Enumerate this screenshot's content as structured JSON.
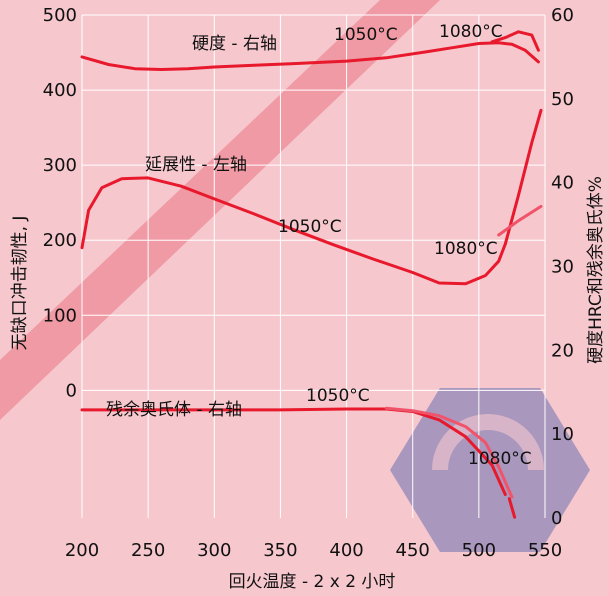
{
  "chart_data": {
    "type": "line",
    "xlabel": "回火温度 - 2 x 2 小时",
    "ylabel_left": "无缺口冲击韧性, J",
    "ylabel_right": "硬度HRC和残余奥氏体%",
    "x_ticks": [
      200,
      250,
      300,
      350,
      400,
      450,
      500,
      550
    ],
    "y_left_ticks": [
      0,
      100,
      200,
      300,
      400,
      500
    ],
    "y_right_ticks": [
      0,
      10,
      20,
      30,
      40,
      50,
      60
    ],
    "xlim": [
      200,
      550
    ],
    "ylim_left": [
      -170,
      500
    ],
    "ylim_right": [
      0,
      60
    ],
    "grid": true,
    "colors": {
      "background": "#f6c8ce",
      "band": "#ef9aa4",
      "curve": "#e8192c",
      "curve_light": "#f0546a",
      "grid": "#ffffff",
      "text": "#111111",
      "watermark": "#4b5ca8"
    },
    "annotations": {
      "hardness": "硬度 - 右轴",
      "toughness": "延展性 - 左轴",
      "austenite": "残余奥氏体 - 右轴",
      "t1050_hardness": "1050°C",
      "t1080_hardness": "1080°C",
      "t1050_toughness": "1050°C",
      "t1080_toughness": "1080°C",
      "t1050_austenite": "1050°C",
      "t1080_austenite": "1080°C"
    },
    "series": [
      {
        "axis": "right",
        "x": [
          200,
          220,
          240,
          260,
          280,
          300,
          330,
          360,
          400,
          430,
          460,
          480,
          500,
          515,
          525,
          535,
          545
        ],
        "y": [
          55,
          54.1,
          53.6,
          53.5,
          53.6,
          53.8,
          54,
          54.2,
          54.5,
          54.9,
          55.6,
          56.1,
          56.6,
          56.7,
          56.5,
          55.8,
          54.4
        ]
      },
      {
        "axis": "right",
        "x": [
          510,
          520,
          530,
          540,
          545
        ],
        "y": [
          56.8,
          57.3,
          58,
          57.6,
          55.8
        ]
      },
      {
        "axis": "left",
        "x": [
          200,
          205,
          215,
          230,
          250,
          275,
          300,
          330,
          360,
          390,
          420,
          450,
          470,
          490,
          505,
          515,
          520
        ],
        "y": [
          190,
          240,
          270,
          282,
          283,
          272,
          255,
          235,
          214,
          194,
          175,
          157,
          143,
          142,
          153,
          172,
          195
        ]
      },
      {
        "axis": "left",
        "x": [
          520,
          530,
          540,
          547
        ],
        "y": [
          195,
          260,
          330,
          373
        ]
      },
      {
        "axis": "left",
        "x": [
          515,
          530,
          547
        ],
        "y": [
          207,
          226,
          245
        ]
      },
      {
        "axis": "right",
        "x": [
          200,
          250,
          300,
          350,
          400,
          430,
          450,
          470,
          490,
          510,
          520
        ],
        "y": [
          12.9,
          12.9,
          12.9,
          12.9,
          13,
          13,
          12.7,
          11.7,
          9.7,
          6.3,
          2.8
        ]
      },
      {
        "axis": "right",
        "x": [
          430,
          450,
          470,
          490,
          505,
          515,
          525
        ],
        "y": [
          13.1,
          12.8,
          12.2,
          10.9,
          9,
          6.1,
          2.5
        ]
      },
      {
        "axis": "right",
        "x": [
          523,
          527
        ],
        "y": [
          2.3,
          0.1
        ]
      }
    ]
  }
}
